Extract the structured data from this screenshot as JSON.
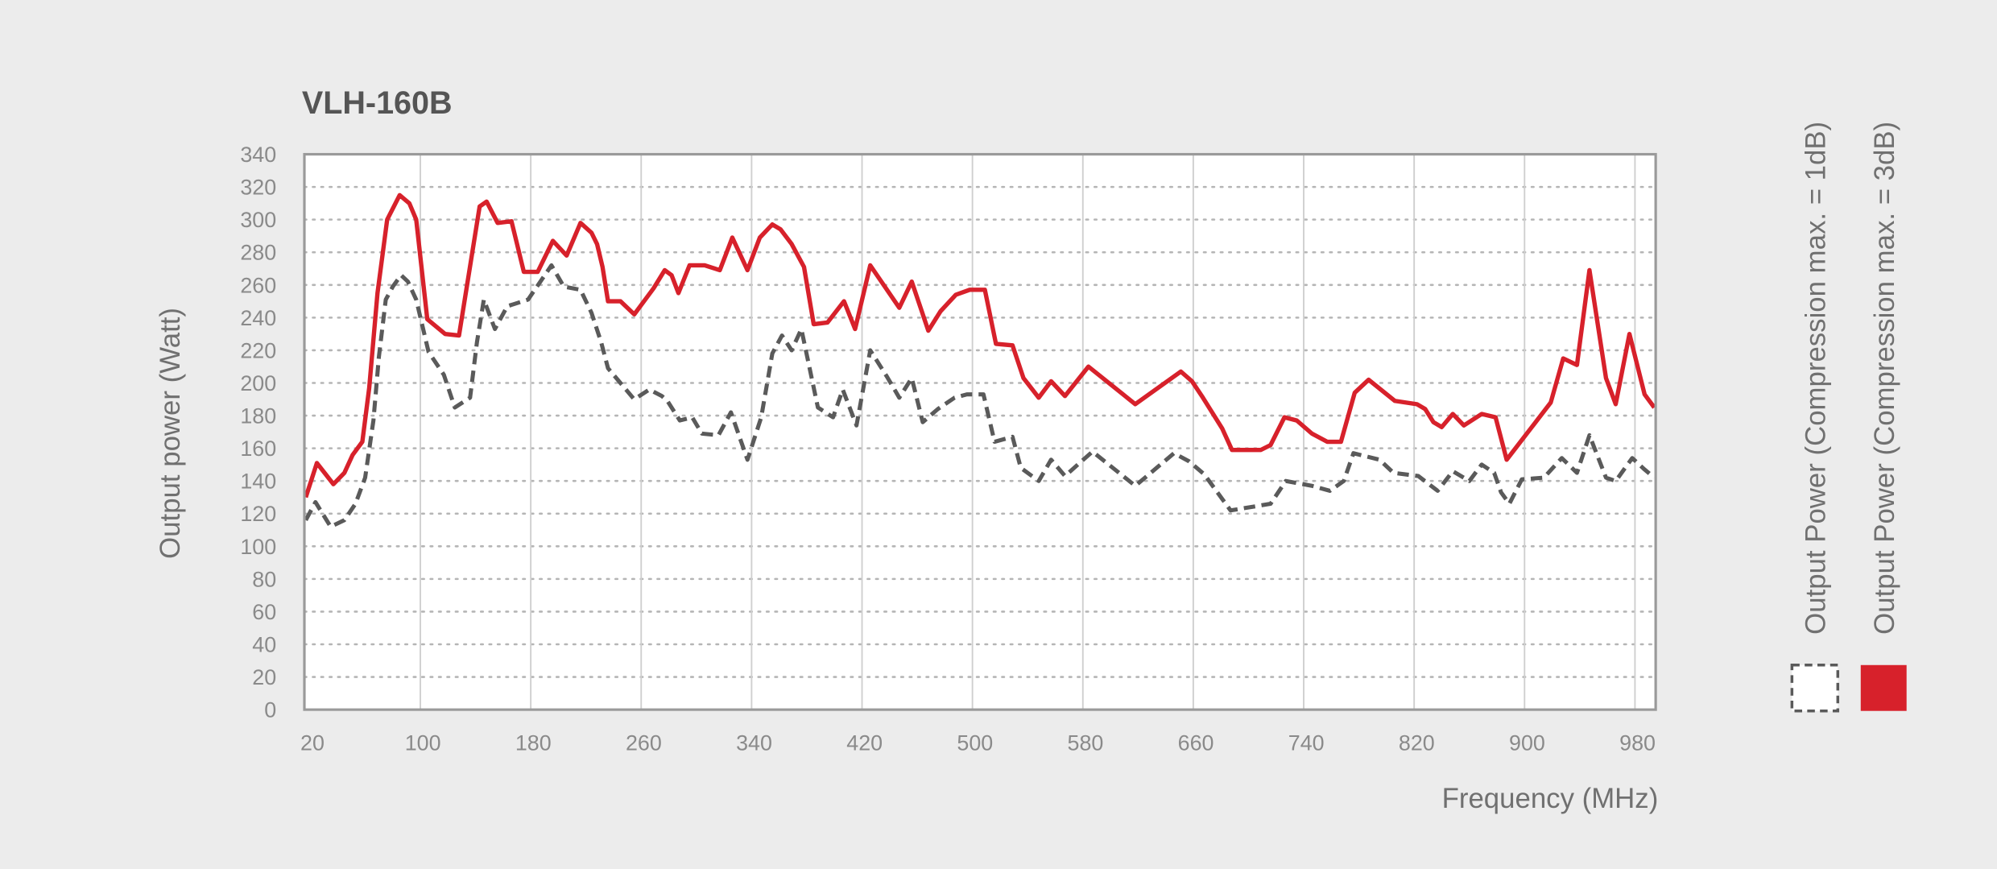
{
  "chart_data": {
    "type": "line",
    "title": "VLH-160B",
    "x_label": "Frequency (MHz)",
    "y_label": "Output power (Watt)",
    "xlim": [
      16,
      995
    ],
    "ylim": [
      0,
      340
    ],
    "xticks": [
      20,
      100,
      180,
      260,
      340,
      420,
      500,
      580,
      660,
      740,
      820,
      900,
      980
    ],
    "yticks": [
      0,
      20,
      40,
      60,
      80,
      100,
      120,
      140,
      160,
      180,
      200,
      220,
      240,
      260,
      280,
      300,
      320,
      340
    ],
    "grid": true,
    "legend": "right",
    "series": [
      {
        "name": "Output Power (Compression max. = 1dB)",
        "color": "#5a5a5a",
        "dash": true,
        "x": [
          17,
          24,
          35,
          45,
          53,
          60,
          66,
          70,
          75,
          80,
          86,
          91,
          97,
          106,
          117,
          125,
          136,
          141,
          146,
          154,
          163,
          178,
          187,
          195,
          204,
          216,
          224,
          231,
          236,
          248,
          255,
          266,
          275,
          279,
          288,
          297,
          304,
          316,
          325,
          337,
          347,
          355,
          362,
          369,
          376,
          388,
          399,
          406,
          416,
          426,
          438,
          447,
          456,
          464,
          475,
          487,
          496,
          508,
          516,
          529,
          535,
          548,
          557,
          567,
          587,
          618,
          646,
          657,
          668,
          687,
          716,
          727,
          746,
          759,
          769,
          776,
          795,
          805,
          823,
          837,
          848,
          860,
          869,
          878,
          883,
          889,
          898,
          914,
          927,
          938,
          947,
          959,
          966,
          978,
          987,
          994
        ],
        "values": [
          116,
          127,
          112,
          116,
          126,
          142,
          177,
          216,
          251,
          259,
          266,
          262,
          251,
          219,
          205,
          185,
          191,
          225,
          251,
          233,
          247,
          251,
          262,
          272,
          259,
          257,
          243,
          225,
          209,
          197,
          190,
          196,
          192,
          189,
          177,
          179,
          169,
          168,
          182,
          153,
          179,
          218,
          229,
          220,
          233,
          185,
          179,
          196,
          174,
          220,
          204,
          191,
          203,
          176,
          184,
          191,
          193,
          193,
          164,
          167,
          148,
          140,
          153,
          143,
          158,
          137,
          157,
          152,
          144,
          122,
          126,
          140,
          137,
          134,
          140,
          157,
          153,
          145,
          143,
          134,
          146,
          140,
          150,
          145,
          133,
          126,
          141,
          142,
          154,
          145,
          168,
          142,
          140,
          154,
          147,
          142
        ]
      },
      {
        "name": "Output Power (Compression max. = 3dB)",
        "color": "#d7212b",
        "dash": false,
        "x": [
          17,
          25,
          37,
          45,
          51,
          58,
          63,
          69,
          76,
          85,
          92,
          97,
          105,
          118,
          128,
          143,
          148,
          156,
          166,
          175,
          185,
          196,
          206,
          216,
          224,
          228,
          232,
          236,
          245,
          255,
          269,
          277,
          282,
          287,
          295,
          306,
          317,
          326,
          337,
          346,
          355,
          361,
          369,
          378,
          385,
          395,
          407,
          415,
          426,
          447,
          456,
          468,
          477,
          488,
          498,
          509,
          517,
          529,
          537,
          548,
          557,
          567,
          584,
          618,
          651,
          659,
          667,
          681,
          688,
          709,
          716,
          726,
          735,
          746,
          757,
          767,
          777,
          787,
          806,
          822,
          828,
          834,
          840,
          848,
          856,
          869,
          879,
          887,
          919,
          928,
          938,
          947,
          959,
          966,
          976,
          987,
          994
        ],
        "values": [
          130,
          151,
          138,
          145,
          156,
          164,
          197,
          255,
          300,
          315,
          310,
          300,
          239,
          230,
          229,
          308,
          311,
          298,
          299,
          268,
          268,
          287,
          278,
          298,
          292,
          285,
          271,
          250,
          250,
          242,
          258,
          269,
          266,
          255,
          272,
          272,
          269,
          289,
          269,
          289,
          297,
          294,
          285,
          271,
          236,
          237,
          250,
          233,
          272,
          246,
          262,
          232,
          244,
          254,
          257,
          257,
          224,
          223,
          203,
          191,
          201,
          192,
          210,
          187,
          207,
          201,
          191,
          172,
          159,
          159,
          162,
          179,
          177,
          169,
          164,
          164,
          194,
          202,
          189,
          187,
          184,
          176,
          173,
          181,
          174,
          181,
          179,
          153,
          188,
          215,
          211,
          269,
          203,
          187,
          230,
          193,
          185
        ]
      }
    ]
  }
}
